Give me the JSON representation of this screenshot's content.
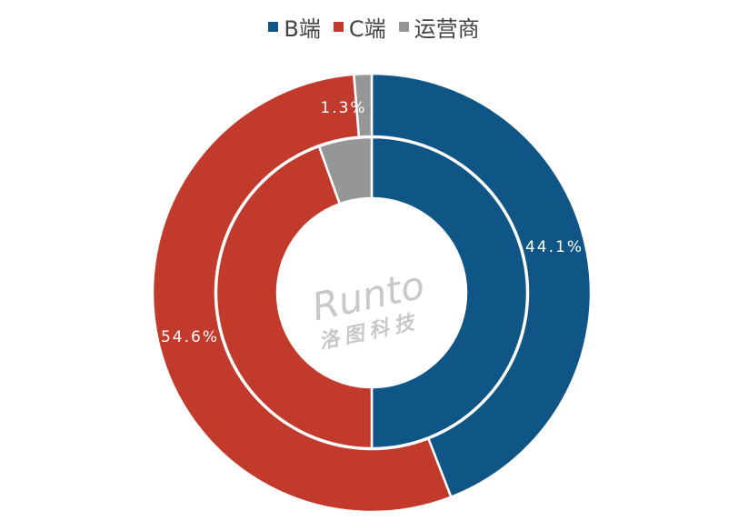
{
  "chart_data": {
    "type": "pie",
    "subtype": "double-donut",
    "legend": {
      "position": "top",
      "entries": [
        {
          "name": "B端",
          "color": "#0f5585"
        },
        {
          "name": "C端",
          "color": "#c23a2b"
        },
        {
          "name": "运营商",
          "color": "#969696"
        }
      ]
    },
    "series": [
      {
        "ring": "inner",
        "values": [
          50.0,
          44.5,
          5.5
        ]
      },
      {
        "ring": "outer",
        "values": [
          44.1,
          54.6,
          1.3
        ],
        "data_labels": [
          "44.1%",
          "54.6%",
          "1.3%"
        ]
      }
    ],
    "categories": [
      "B端",
      "C端",
      "运营商"
    ]
  },
  "watermark": {
    "brand": "Runto",
    "subtitle": "洛图科技"
  }
}
